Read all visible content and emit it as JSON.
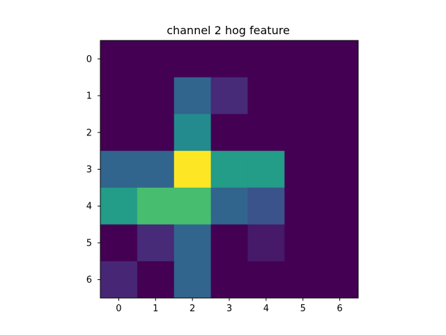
{
  "chart_data": {
    "type": "heatmap",
    "title": "channel 2 hog feature",
    "xlabel": "",
    "ylabel": "",
    "x_ticks": [
      "0",
      "1",
      "2",
      "3",
      "4",
      "5",
      "6"
    ],
    "y_ticks": [
      "0",
      "1",
      "2",
      "3",
      "4",
      "5",
      "6"
    ],
    "colormap": "viridis",
    "colorbar": false,
    "grid": false,
    "values": [
      [
        0.0,
        0.0,
        0.0,
        0.0,
        0.0,
        0.0,
        0.0
      ],
      [
        0.0,
        0.0,
        0.33,
        0.12,
        0.0,
        0.0,
        0.0
      ],
      [
        0.0,
        0.0,
        0.48,
        0.0,
        0.0,
        0.0,
        0.0
      ],
      [
        0.33,
        0.33,
        1.0,
        0.55,
        0.55,
        0.0,
        0.0
      ],
      [
        0.55,
        0.7,
        0.7,
        0.33,
        0.26,
        0.0,
        0.0
      ],
      [
        0.0,
        0.12,
        0.33,
        0.0,
        0.07,
        0.0,
        0.0
      ],
      [
        0.11,
        0.0,
        0.33,
        0.0,
        0.0,
        0.0,
        0.0
      ]
    ]
  }
}
